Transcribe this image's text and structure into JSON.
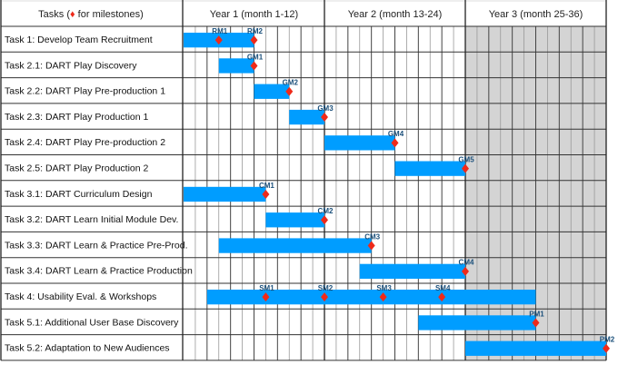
{
  "chart_data": {
    "type": "gantt",
    "header": {
      "tasks_label_pre": "Tasks (",
      "milestone_symbol": "♦",
      "tasks_label_post": " for milestones)"
    },
    "x_unit": "month",
    "xlim": [
      0,
      36
    ],
    "years": [
      {
        "label": "Year 1 (month 1-12)",
        "start": 0,
        "end": 12
      },
      {
        "label": "Year 2 (month 13-24)",
        "start": 12,
        "end": 24
      },
      {
        "label": "Year 3 (month 25-36)",
        "start": 24,
        "end": 36,
        "shaded": true
      }
    ],
    "tasks": [
      {
        "label": "Task 1: Develop Team Recruitment",
        "start": 0,
        "end": 6,
        "milestones": [
          {
            "name": "RM1",
            "month": 3
          },
          {
            "name": "RM2",
            "month": 6
          }
        ]
      },
      {
        "label": "Task 2.1: DART Play Discovery",
        "start": 3,
        "end": 6,
        "milestones": [
          {
            "name": "GM1",
            "month": 6
          }
        ]
      },
      {
        "label": "Task 2.2: DART Play Pre-production 1",
        "start": 6,
        "end": 9,
        "milestones": [
          {
            "name": "GM2",
            "month": 9
          }
        ]
      },
      {
        "label": "Task 2.3: DART Play Production 1",
        "start": 9,
        "end": 12,
        "milestones": [
          {
            "name": "GM3",
            "month": 12
          }
        ]
      },
      {
        "label": "Task 2.4: DART Play Pre-production 2",
        "start": 12,
        "end": 18,
        "milestones": [
          {
            "name": "GM4",
            "month": 18
          }
        ]
      },
      {
        "label": "Task 2.5: DART Play Production 2",
        "start": 18,
        "end": 24,
        "milestones": [
          {
            "name": "GM5",
            "month": 24
          }
        ]
      },
      {
        "label": "Task 3.1: DART Curriculum Design",
        "start": 0,
        "end": 7,
        "milestones": [
          {
            "name": "CM1",
            "month": 7
          }
        ]
      },
      {
        "label": "Task 3.2: DART Learn Initial Module Dev.",
        "start": 7,
        "end": 12,
        "milestones": [
          {
            "name": "CM2",
            "month": 12
          }
        ]
      },
      {
        "label": "Task 3.3: DART Learn & Practice Pre-Prod.",
        "start": 3,
        "end": 16,
        "milestones": [
          {
            "name": "CM3",
            "month": 16
          }
        ]
      },
      {
        "label": "Task 3.4: DART Learn & Practice Production",
        "start": 15,
        "end": 24,
        "milestones": [
          {
            "name": "CM4",
            "month": 24
          }
        ]
      },
      {
        "label": "Task 4: Usability Eval. & Workshops",
        "start": 2,
        "end": 30,
        "milestones": [
          {
            "name": "SM1",
            "month": 7
          },
          {
            "name": "SM2",
            "month": 12
          },
          {
            "name": "SM3",
            "month": 17
          },
          {
            "name": "SM4",
            "month": 22
          }
        ]
      },
      {
        "label": "Task 5.1: Additional User Base Discovery",
        "start": 20,
        "end": 30,
        "milestones": [
          {
            "name": "PM1",
            "month": 30
          }
        ]
      },
      {
        "label": "Task 5.2: Adaptation to New Audiences",
        "start": 24,
        "end": 36,
        "milestones": [
          {
            "name": "PM2",
            "month": 36
          }
        ]
      }
    ],
    "colors": {
      "bar": "#009dff",
      "milestone": "#ee2a1a",
      "milestone_label": "#1a4f7a",
      "shade": "#d4d4d4",
      "grid": "#888888"
    }
  }
}
